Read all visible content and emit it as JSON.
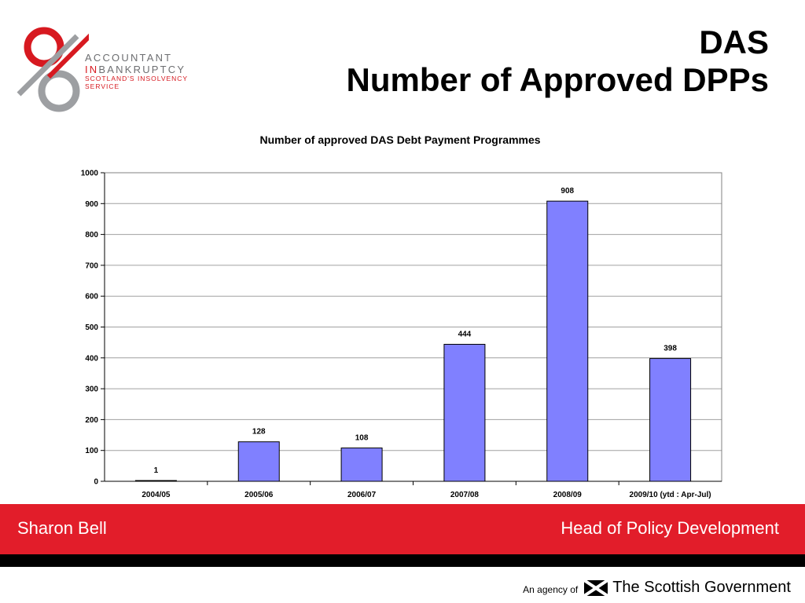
{
  "logo": {
    "line1": "ACCOUNTANT",
    "line2_prefix": "IN",
    "line2_rest": "BANKRUPTCY",
    "line3": "SCOTLAND'S INSOLVENCY SERVICE",
    "colors": {
      "red": "#d71920",
      "grey": "#9d9fa2"
    }
  },
  "title": {
    "line1": "DAS",
    "line2": "Number of Approved DPPs"
  },
  "chart_data": {
    "type": "bar",
    "title": "Number of approved DAS Debt Payment Programmes",
    "categories": [
      "2004/05",
      "2005/06",
      "2006/07",
      "2007/08",
      "2008/09",
      "2009/10 (ytd : Apr-Jul)"
    ],
    "values": [
      1,
      128,
      108,
      444,
      908,
      398
    ],
    "data_labels": [
      "1",
      "128",
      "108",
      "444",
      "908",
      "398"
    ],
    "ylim": [
      0,
      1000
    ],
    "yticks": [
      0,
      100,
      200,
      300,
      400,
      500,
      600,
      700,
      800,
      900,
      1000
    ],
    "ytick_labels": [
      "0",
      "100",
      "200",
      "300",
      "400",
      "500",
      "600",
      "700",
      "800",
      "900",
      "1000"
    ],
    "xlabel": "",
    "ylabel": "",
    "grid": true,
    "legend": "none",
    "bar_color": "#8080ff"
  },
  "footer": {
    "name": "Sharon Bell",
    "role": "Head of Policy Development",
    "agency_prefix": "An agency of",
    "agency_name": "The Scottish Government",
    "bar_color": "#e21d2a"
  }
}
